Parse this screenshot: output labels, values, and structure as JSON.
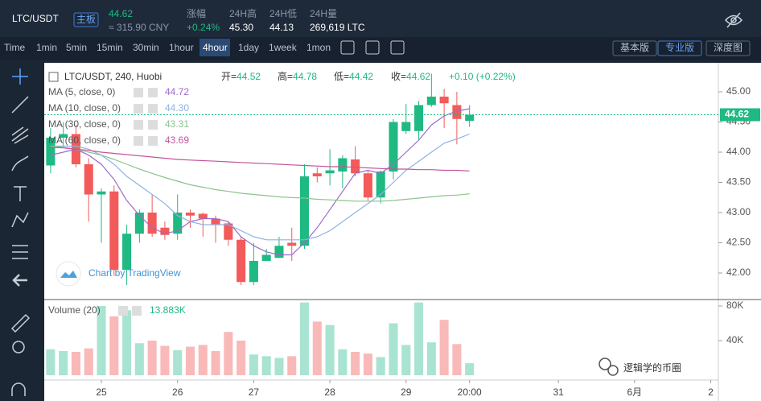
{
  "header": {
    "pair": "LTC/USDT",
    "badge": "主板",
    "price": "44.62",
    "cny": "≈ 315.90 CNY",
    "stats": [
      {
        "label": "涨幅",
        "value": "+0.24%"
      },
      {
        "label": "24H高",
        "value": "45.30"
      },
      {
        "label": "24H低",
        "value": "44.13"
      },
      {
        "label": "24H量",
        "value": "269,619 LTC"
      }
    ]
  },
  "toolbar": {
    "intervals": [
      "Time",
      "1min",
      "5min",
      "15min",
      "30min",
      "1hour",
      "4hour",
      "1day",
      "1week",
      "1mon"
    ],
    "active": "4hour",
    "views": [
      "基本版",
      "专业版",
      "深度图"
    ],
    "active_view": "专业版"
  },
  "chart": {
    "type": "candlestick",
    "symbol": "LTC/USDT, 240, Huobi",
    "ohlc": [
      {
        "label": "开=",
        "value": "44.52"
      },
      {
        "label": "高=",
        "value": "44.78"
      },
      {
        "label": "低=",
        "value": "44.42"
      },
      {
        "label": "收=",
        "value": "44.62"
      }
    ],
    "change": "+0.10 (+0.22%)",
    "up_color": "#1fb982",
    "down_color": "#f35a5a",
    "vol_up_color": "#a9e3d1",
    "vol_down_color": "#f9b9b9",
    "open": [
      43.78,
      44.24,
      44.3,
      43.8,
      43.3,
      43.35,
      42.05,
      42.65,
      43.0,
      42.75,
      42.65,
      43.0,
      42.98,
      42.9,
      42.82,
      42.55,
      41.85,
      42.2,
      42.25,
      42.5,
      42.45,
      43.65,
      43.65,
      43.68,
      43.88,
      43.65,
      43.25,
      43.68,
      44.35,
      44.35,
      44.78,
      44.92,
      44.78,
      44.52
    ],
    "high": [
      44.4,
      44.5,
      44.45,
      43.9,
      43.4,
      43.45,
      42.8,
      43.05,
      43.3,
      42.85,
      43.3,
      43.05,
      43.0,
      42.95,
      42.85,
      42.6,
      42.5,
      42.4,
      42.6,
      42.75,
      43.8,
      43.75,
      44.05,
      43.95,
      44.1,
      43.7,
      43.7,
      44.55,
      44.8,
      44.85,
      45.3,
      45.05,
      45.0,
      44.78
    ],
    "low": [
      43.65,
      44.1,
      43.75,
      42.85,
      42.5,
      41.95,
      41.8,
      42.5,
      42.6,
      42.55,
      42.55,
      42.75,
      42.6,
      42.5,
      42.45,
      41.8,
      41.8,
      42.2,
      42.25,
      42.2,
      42.4,
      43.5,
      43.45,
      43.4,
      43.6,
      43.2,
      43.15,
      43.55,
      44.3,
      44.2,
      44.75,
      44.4,
      44.13,
      44.42
    ],
    "close": [
      44.24,
      44.3,
      43.8,
      43.3,
      43.35,
      42.05,
      42.65,
      43.0,
      42.65,
      42.63,
      43.0,
      42.95,
      42.9,
      42.8,
      42.55,
      41.85,
      42.2,
      42.3,
      42.45,
      42.45,
      43.6,
      43.6,
      43.7,
      43.9,
      43.65,
      43.25,
      43.68,
      44.5,
      44.5,
      44.78,
      44.92,
      44.81,
      44.55,
      44.62
    ],
    "volume": [
      30000,
      28000,
      27000,
      31000,
      80000,
      68000,
      75000,
      37000,
      40000,
      34000,
      29000,
      33000,
      35000,
      28000,
      50000,
      40000,
      24000,
      22000,
      20000,
      22000,
      84000,
      62000,
      58000,
      30000,
      27000,
      25000,
      21000,
      60000,
      35000,
      84000,
      38000,
      64000,
      36000,
      13883
    ],
    "volume_title": "Volume (20)",
    "volume_label": "13.883K",
    "mas": [
      {
        "name": "MA (5, close, 0)",
        "color": "#9c6bc8",
        "legend_value": "44.72",
        "values": [
          43.95,
          44.0,
          44.05,
          43.95,
          43.8,
          43.55,
          43.2,
          42.95,
          42.75,
          42.65,
          42.7,
          42.85,
          42.9,
          42.9,
          42.85,
          42.6,
          42.45,
          42.35,
          42.3,
          42.3,
          42.5,
          42.75,
          43.05,
          43.35,
          43.65,
          43.7,
          43.65,
          43.8,
          44.0,
          44.2,
          44.45,
          44.6,
          44.68,
          44.72
        ]
      },
      {
        "name": "MA (10, close, 0)",
        "color": "#8fb3e0",
        "legend_value": "44.30",
        "values": [
          44.1,
          44.1,
          44.1,
          44.05,
          43.95,
          43.8,
          43.6,
          43.45,
          43.3,
          43.15,
          42.95,
          42.85,
          42.8,
          42.8,
          42.8,
          42.7,
          42.6,
          42.55,
          42.55,
          42.55,
          42.55,
          42.6,
          42.7,
          42.85,
          43.0,
          43.15,
          43.3,
          43.5,
          43.7,
          43.85,
          44.0,
          44.15,
          44.22,
          44.3
        ]
      },
      {
        "name": "MA (30, close, 0)",
        "color": "#8ac48c",
        "legend_value": "43.31",
        "values": [
          44.1,
          44.08,
          44.05,
          44.0,
          43.95,
          43.88,
          43.8,
          43.72,
          43.65,
          43.58,
          43.52,
          43.46,
          43.42,
          43.38,
          43.35,
          43.32,
          43.3,
          43.28,
          43.26,
          43.25,
          43.24,
          43.22,
          43.21,
          43.2,
          43.19,
          43.19,
          43.19,
          43.2,
          43.22,
          43.24,
          43.26,
          43.28,
          43.29,
          43.31
        ]
      },
      {
        "name": "MA (60, close, 0)",
        "color": "#c2559c",
        "legend_value": "43.69",
        "values": [
          44.08,
          44.07,
          44.05,
          44.03,
          44.0,
          43.98,
          43.96,
          43.94,
          43.92,
          43.9,
          43.88,
          43.87,
          43.86,
          43.85,
          43.84,
          43.83,
          43.82,
          43.81,
          43.8,
          43.79,
          43.78,
          43.77,
          43.76,
          43.76,
          43.75,
          43.74,
          43.73,
          43.72,
          43.72,
          43.71,
          43.71,
          43.7,
          43.7,
          43.69
        ]
      }
    ],
    "xlim": [
      -0.5,
      52.6
    ],
    "xticks": [
      {
        "value": 4,
        "label": "25"
      },
      {
        "value": 10,
        "label": "26"
      },
      {
        "value": 16,
        "label": "27"
      },
      {
        "value": 22,
        "label": "28"
      },
      {
        "value": 28,
        "label": "29"
      },
      {
        "value": 33,
        "label": "20:00"
      },
      {
        "value": 40,
        "label": "31"
      },
      {
        "value": 46,
        "label": "6月"
      },
      {
        "value": 52,
        "label": "2"
      }
    ],
    "ylim": [
      41.56,
      45.48
    ],
    "yticks": [
      {
        "value": 45,
        "label": "45.00"
      },
      {
        "value": 44.5,
        "label": "44.50"
      },
      {
        "value": 44,
        "label": "44.00"
      },
      {
        "value": 43.5,
        "label": "43.50"
      },
      {
        "value": 43,
        "label": "43.00"
      },
      {
        "value": 42.5,
        "label": "42.50"
      },
      {
        "value": 42,
        "label": "42.00"
      }
    ],
    "vlim": [
      -3700,
      84650
    ],
    "vticks": [
      {
        "value": 80000,
        "label": "80K"
      },
      {
        "value": 40000,
        "label": "40K"
      }
    ],
    "watermark": "Chart by TradingView"
  },
  "footer_watermark": "逻辑学的币圈"
}
